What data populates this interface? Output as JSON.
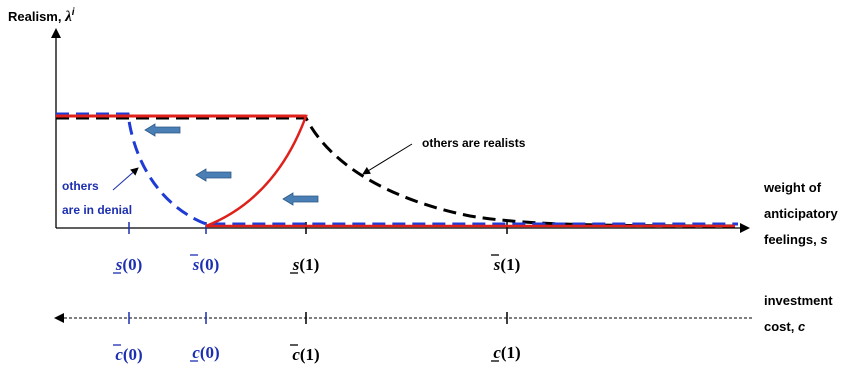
{
  "y_axis": {
    "label": "Realism, ",
    "symbol": "λ",
    "superscript": "i"
  },
  "x_axis": {
    "label_lines": [
      "weight of",
      "anticipatory",
      "feelings, "
    ],
    "label_var": "s"
  },
  "cost_axis": {
    "label_lines": [
      "investment",
      "cost, "
    ],
    "label_var": "c"
  },
  "annotations": {
    "realists": "others are realists",
    "denial_lines": [
      "others",
      "are in denial"
    ]
  },
  "s_ticks": [
    {
      "var": "s",
      "arg": "(0)",
      "bar": "under",
      "color": "#1c2fb0"
    },
    {
      "var": "s",
      "arg": "(0)",
      "bar": "over",
      "color": "#1c2fb0"
    },
    {
      "var": "s",
      "arg": "(1)",
      "bar": "under",
      "color": "#000000"
    },
    {
      "var": "s",
      "arg": "(1)",
      "bar": "over",
      "color": "#000000"
    }
  ],
  "c_ticks": [
    {
      "var": "c",
      "arg": "(0)",
      "bar": "over",
      "color": "#1c2fb0"
    },
    {
      "var": "c",
      "arg": "(0)",
      "bar": "under",
      "color": "#1c2fb0"
    },
    {
      "var": "c",
      "arg": "(1)",
      "bar": "over",
      "color": "#000000"
    },
    {
      "var": "c",
      "arg": "(1)",
      "bar": "under",
      "color": "#000000"
    }
  ],
  "colors": {
    "red_curve": "#e0201b",
    "blue_dashed": "#1f3bd6",
    "black_dashed": "#000000",
    "arrows": "#4a7fb5",
    "axis": "#000000"
  }
}
